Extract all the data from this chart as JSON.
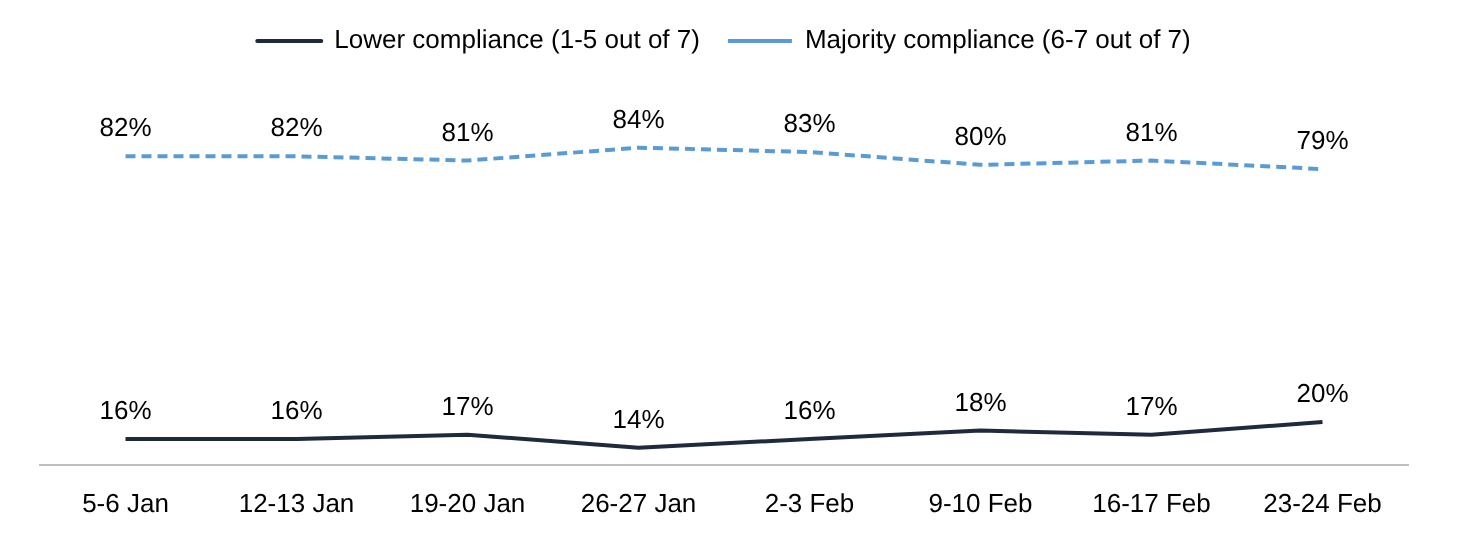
{
  "chart_data": {
    "type": "line",
    "categories": [
      "5-6 Jan",
      "12-13 Jan",
      "19-20 Jan",
      "26-27 Jan",
      "2-3 Feb",
      "9-10 Feb",
      "16-17 Feb",
      "23-24 Feb"
    ],
    "series": [
      {
        "name": "Lower compliance (1-5 out of 7)",
        "color": "#1f2a3c",
        "line_style": "solid",
        "values": [
          16,
          16,
          17,
          14,
          16,
          18,
          17,
          20
        ],
        "value_labels": [
          "16%",
          "16%",
          "17%",
          "14%",
          "16%",
          "18%",
          "17%",
          "20%"
        ]
      },
      {
        "name": "Majority compliance (6-7 out of 7)",
        "color": "#5b9bd5",
        "line_style": "dashed",
        "values": [
          82,
          82,
          81,
          84,
          83,
          80,
          81,
          79
        ],
        "value_labels": [
          "82%",
          "82%",
          "81%",
          "84%",
          "83%",
          "80%",
          "81%",
          "79%"
        ]
      }
    ],
    "tick_labels": "x",
    "legend": "top"
  }
}
